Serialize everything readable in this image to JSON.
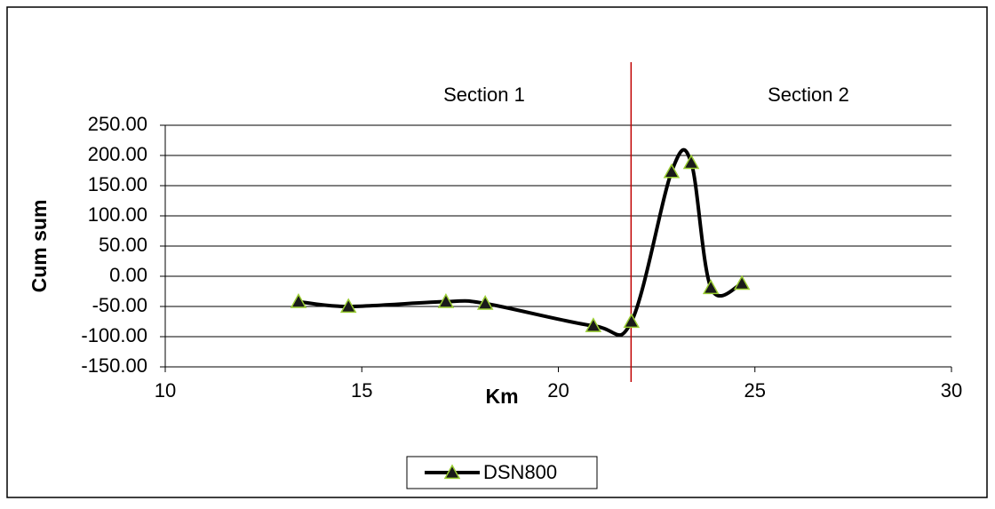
{
  "chart_data": {
    "type": "line",
    "x_label": "Km",
    "y_label": "Cum sum",
    "xlim": [
      10,
      30
    ],
    "xticks": [
      10,
      15,
      20,
      25,
      30
    ],
    "ylim": [
      -150,
      250
    ],
    "yticks": [
      {
        "value": -150,
        "label": "-150.00"
      },
      {
        "value": -100,
        "label": "-100.00"
      },
      {
        "value": -50,
        "label": "-50.00"
      },
      {
        "value": 0,
        "label": "0.00"
      },
      {
        "value": 50,
        "label": "50.00"
      },
      {
        "value": 100,
        "label": "100.00"
      },
      {
        "value": 150,
        "label": "150.00"
      },
      {
        "value": 200,
        "label": "200.00"
      },
      {
        "value": 250,
        "label": "250.00"
      }
    ],
    "grid": true,
    "legend": "bottom",
    "series": [
      {
        "name": "DSN800",
        "color": "#000000",
        "marker_color": "#9acd32",
        "marker_fill": "#1a1a1a",
        "x": [
          13.39,
          14.66,
          17.14,
          18.14,
          20.89,
          21.86,
          22.88,
          23.38,
          23.88,
          24.67
        ],
        "values": [
          -42,
          -50,
          -42,
          -45,
          -82,
          -75,
          173,
          188,
          -19,
          -12
        ]
      }
    ],
    "vline": {
      "x": 21.85,
      "color": "#c00000"
    },
    "annotations": [
      "Section 1",
      "Section 2"
    ]
  }
}
